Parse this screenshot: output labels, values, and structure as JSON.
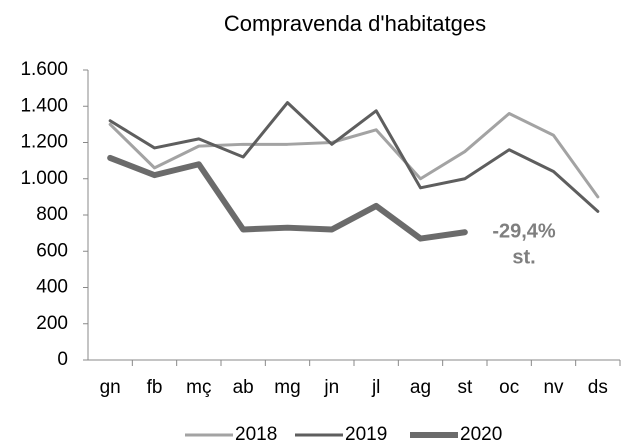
{
  "chart_data": {
    "type": "line",
    "title": "Compravenda d'habitatges",
    "categories": [
      "gn",
      "fb",
      "mç",
      "ab",
      "mg",
      "jn",
      "jl",
      "ag",
      "st",
      "oc",
      "nv",
      "ds"
    ],
    "series": [
      {
        "name": "2018",
        "color": "#a3a3a3",
        "values": [
          1300,
          1060,
          1180,
          1190,
          1190,
          1200,
          1270,
          1000,
          1150,
          1360,
          1240,
          900
        ]
      },
      {
        "name": "2019",
        "color": "#5e5e5e",
        "values": [
          1320,
          1170,
          1220,
          1120,
          1420,
          1190,
          1375,
          950,
          1000,
          1160,
          1040,
          820
        ]
      },
      {
        "name": "2020",
        "color": "#6b6b6b",
        "values": [
          1115,
          1020,
          1080,
          720,
          730,
          720,
          850,
          670,
          705,
          null,
          null,
          null
        ]
      }
    ],
    "ylim": [
      0,
      1600
    ],
    "yticks": [
      0,
      200,
      400,
      600,
      800,
      {
        "value": 1000,
        "label": "1.000"
      },
      {
        "value": 1200,
        "label": "1.200"
      },
      {
        "value": 1400,
        "label": "1.400"
      },
      {
        "value": 1600,
        "label": "1.600"
      }
    ],
    "annotation": [
      "-29,4%",
      "st."
    ],
    "grid": false,
    "legend": "bottom"
  }
}
